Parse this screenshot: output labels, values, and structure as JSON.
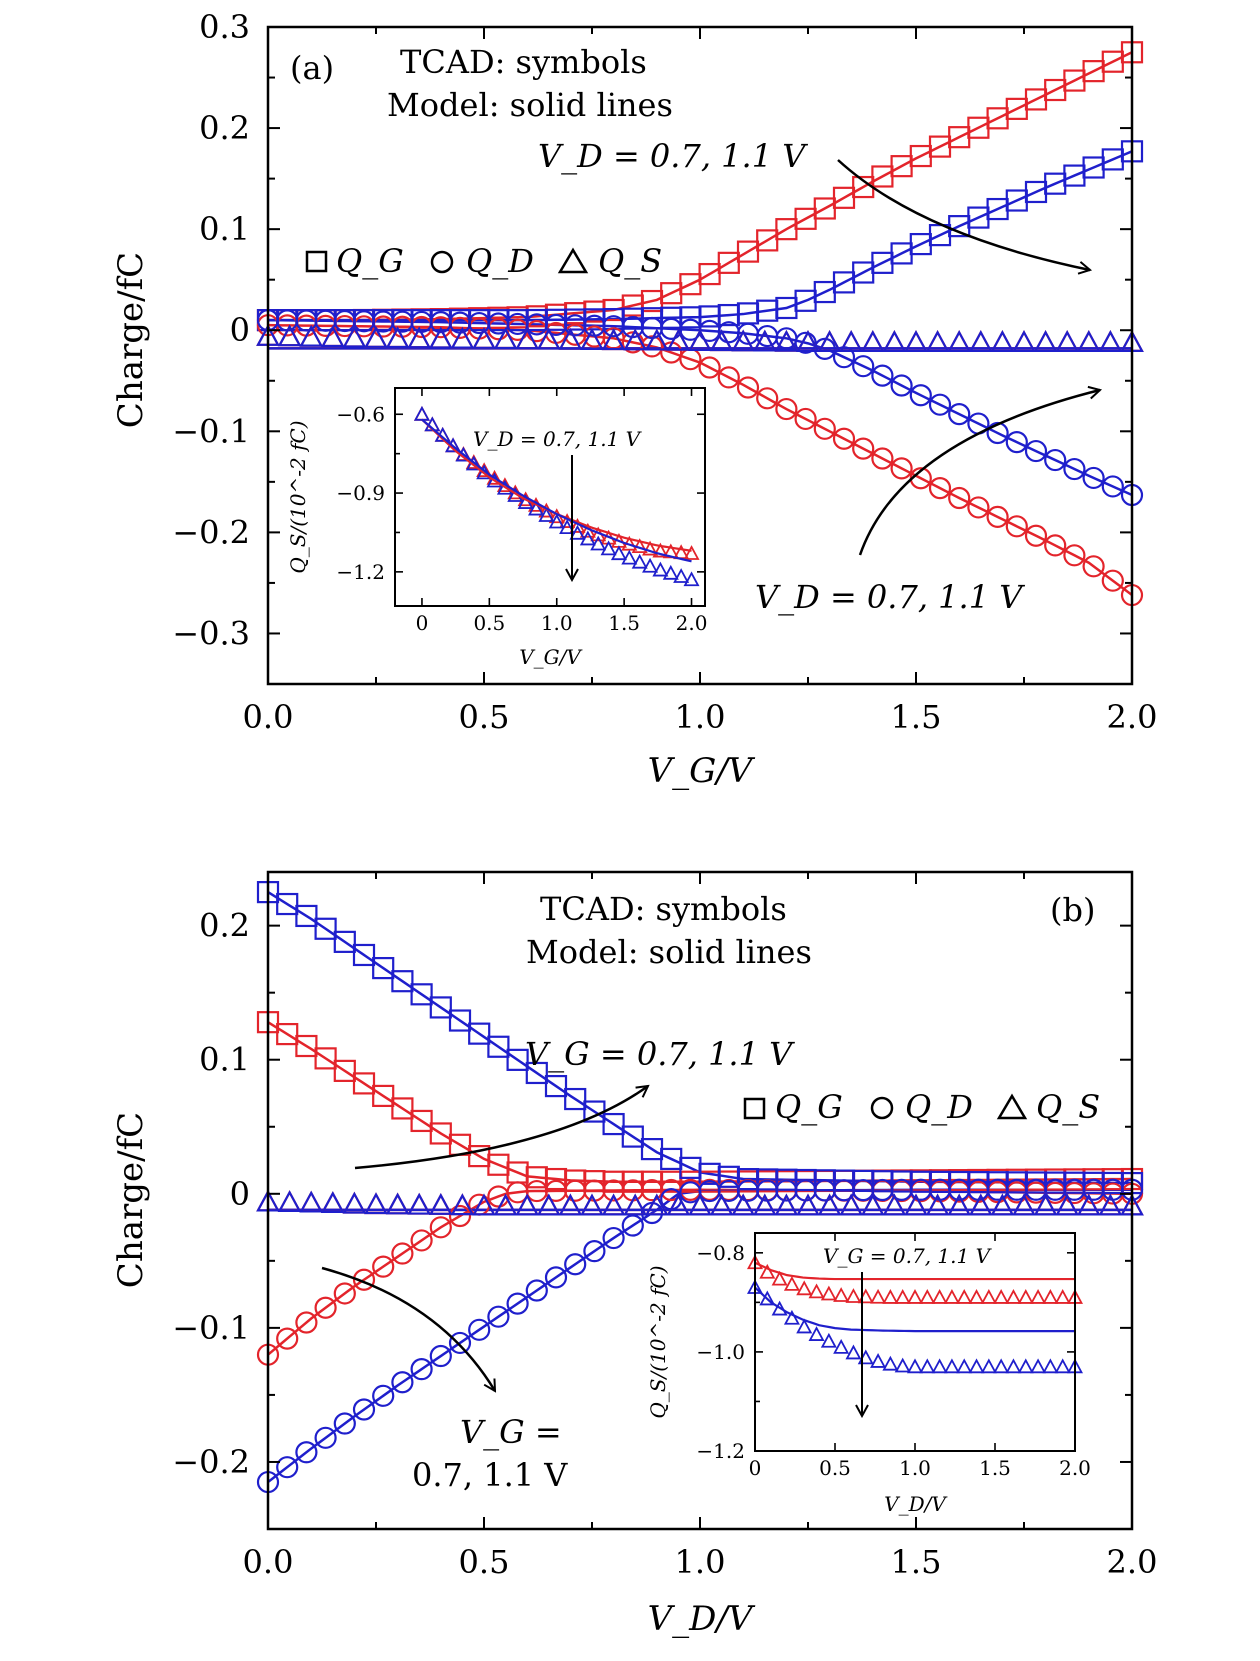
{
  "colors": {
    "vd_low": "#e3242b",
    "vd_high": "#1f1fcc",
    "axis": "#000000",
    "arrow": "#000000"
  },
  "chart_data": [
    {
      "id": "a",
      "type": "line",
      "panel_label": "(a)",
      "note_line1": "TCAD: symbols",
      "note_line2": "Model: solid lines",
      "xlabel": "V_G/V",
      "ylabel": "Charge/fC",
      "xlim": [
        0,
        2.0
      ],
      "ylim": [
        -0.35,
        0.3
      ],
      "xticks": [
        "0.0",
        "0.5",
        "1.0",
        "1.5",
        "2.0"
      ],
      "yticks": [
        "0.3",
        "0.2",
        "0.1",
        "0",
        "−0.1",
        "−0.2",
        "−0.3"
      ],
      "legend": {
        "qg": "Q_G",
        "qd": "Q_D",
        "qs": "Q_S"
      },
      "annotation_upper": "V_D = 0.7, 1.1 V",
      "annotation_lower": "V_D = 0.7, 1.1 V",
      "series": [
        {
          "name": "Q_G, V_D = 0.7 V",
          "color": "vd_low",
          "marker": "square",
          "x": [
            0,
            0.2,
            0.4,
            0.6,
            0.8,
            0.9,
            1.0,
            1.1,
            1.2,
            1.3,
            1.4,
            1.5,
            1.6,
            1.7,
            1.8,
            1.9,
            2.0
          ],
          "y": [
            0.01,
            0.01,
            0.011,
            0.013,
            0.02,
            0.03,
            0.05,
            0.075,
            0.1,
            0.123,
            0.147,
            0.17,
            0.191,
            0.212,
            0.233,
            0.254,
            0.275
          ]
        },
        {
          "name": "Q_G, V_D = 1.1 V",
          "color": "vd_high",
          "marker": "square",
          "x": [
            0,
            0.2,
            0.4,
            0.6,
            0.8,
            1.0,
            1.1,
            1.2,
            1.25,
            1.3,
            1.4,
            1.5,
            1.6,
            1.7,
            1.8,
            1.9,
            2.0
          ],
          "y": [
            0.01,
            0.01,
            0.01,
            0.01,
            0.011,
            0.013,
            0.016,
            0.022,
            0.03,
            0.04,
            0.062,
            0.083,
            0.103,
            0.122,
            0.141,
            0.159,
            0.177
          ]
        },
        {
          "name": "Q_D, V_D = 0.7 V",
          "color": "vd_low",
          "marker": "circle",
          "x": [
            0,
            0.2,
            0.4,
            0.6,
            0.8,
            0.9,
            1.0,
            1.1,
            1.2,
            1.3,
            1.4,
            1.5,
            1.6,
            1.7,
            1.8,
            1.9,
            2.0
          ],
          "y": [
            0.005,
            0.004,
            0.003,
            0.0,
            -0.008,
            -0.017,
            -0.032,
            -0.054,
            -0.078,
            -0.1,
            -0.122,
            -0.144,
            -0.166,
            -0.187,
            -0.208,
            -0.23,
            -0.262
          ]
        },
        {
          "name": "Q_D, V_D = 1.1 V",
          "color": "vd_high",
          "marker": "circle",
          "x": [
            0,
            0.2,
            0.4,
            0.6,
            0.8,
            1.0,
            1.1,
            1.2,
            1.25,
            1.3,
            1.4,
            1.5,
            1.6,
            1.7,
            1.8,
            1.9,
            2.0
          ],
          "y": [
            0.01,
            0.009,
            0.008,
            0.006,
            0.004,
            0.0,
            -0.003,
            -0.008,
            -0.013,
            -0.02,
            -0.04,
            -0.062,
            -0.083,
            -0.104,
            -0.124,
            -0.144,
            -0.163
          ]
        },
        {
          "name": "Q_S, V_D = 0.7 V",
          "color": "vd_low",
          "marker": "triangle",
          "x": [
            0,
            0.25,
            0.5,
            0.75,
            1.0,
            1.25,
            1.5,
            1.75,
            2.0
          ],
          "y": [
            -0.006,
            -0.008,
            -0.009,
            -0.01,
            -0.011,
            -0.012,
            -0.012,
            -0.012,
            -0.012
          ]
        },
        {
          "name": "Q_S, V_D = 1.1 V",
          "color": "vd_high",
          "marker": "triangle",
          "x": [
            0,
            0.25,
            0.5,
            0.75,
            1.0,
            1.25,
            1.5,
            1.75,
            2.0
          ],
          "y": [
            -0.006,
            -0.008,
            -0.009,
            -0.01,
            -0.011,
            -0.012,
            -0.012,
            -0.012,
            -0.012
          ]
        }
      ],
      "model_qs_level": -0.018,
      "inset": {
        "xlabel": "V_G/V",
        "ylabel": "Q_S/(10^-2 fC)",
        "xlim": [
          -0.2,
          2.1
        ],
        "ylim": [
          -1.33,
          -0.5
        ],
        "xticks": [
          "0",
          "0.5",
          "1.0",
          "1.5",
          "2.0"
        ],
        "yticks": [
          "−0.6",
          "−0.9",
          "−1.2"
        ],
        "annotation": "V_D = 0.7, 1.1 V",
        "series": [
          {
            "name": "TCAD, V_D = 0.7 V",
            "color": "vd_low",
            "kind": "markers",
            "x": [
              0,
              0.25,
              0.5,
              0.75,
              1.0,
              1.25,
              1.5,
              1.75,
              2.0
            ],
            "y": [
              -0.6,
              -0.73,
              -0.83,
              -0.92,
              -0.99,
              -1.05,
              -1.09,
              -1.12,
              -1.13
            ]
          },
          {
            "name": "TCAD, V_D = 1.1 V",
            "color": "vd_high",
            "kind": "markers",
            "x": [
              0,
              0.25,
              0.5,
              0.75,
              1.0,
              1.25,
              1.5,
              1.75,
              2.0
            ],
            "y": [
              -0.6,
              -0.73,
              -0.84,
              -0.93,
              -1.01,
              -1.08,
              -1.14,
              -1.19,
              -1.23
            ]
          },
          {
            "name": "Model, V_D = 0.7 V",
            "color": "vd_low",
            "kind": "line",
            "x": [
              0,
              0.25,
              0.5,
              0.75,
              1.0,
              1.25,
              1.5,
              1.75,
              2.0
            ],
            "y": [
              -0.62,
              -0.74,
              -0.84,
              -0.92,
              -0.98,
              -1.03,
              -1.07,
              -1.1,
              -1.12
            ]
          },
          {
            "name": "Model, V_D = 1.1 V",
            "color": "vd_high",
            "kind": "line",
            "x": [
              0,
              0.25,
              0.5,
              0.75,
              1.0,
              1.25,
              1.5,
              1.75,
              2.0
            ],
            "y": [
              -0.62,
              -0.73,
              -0.83,
              -0.91,
              -0.98,
              -1.04,
              -1.09,
              -1.13,
              -1.16
            ]
          }
        ]
      }
    },
    {
      "id": "b",
      "type": "line",
      "panel_label": "(b)",
      "note_line1": "TCAD: symbols",
      "note_line2": "Model: solid lines",
      "xlabel": "V_D/V",
      "ylabel": "Charge/fC",
      "xlim": [
        0,
        2.0
      ],
      "ylim": [
        -0.25,
        0.24
      ],
      "xticks": [
        "0.0",
        "0.5",
        "1.0",
        "1.5",
        "2.0"
      ],
      "yticks": [
        "0.2",
        "0.1",
        "0",
        "−0.1",
        "−0.2"
      ],
      "legend": {
        "qg": "Q_G",
        "qd": "Q_D",
        "qs": "Q_S"
      },
      "annotation_upper": "V_G = 0.7, 1.1 V",
      "annotation_lower_1": "V_G =",
      "annotation_lower_2": "0.7, 1.1 V",
      "series": [
        {
          "name": "Q_G, V_G = 0.7 V",
          "color": "vd_low",
          "marker": "square",
          "x": [
            0,
            0.1,
            0.2,
            0.3,
            0.4,
            0.5,
            0.6,
            0.7,
            0.8,
            1.0,
            1.5,
            2.0
          ],
          "y": [
            0.128,
            0.108,
            0.087,
            0.066,
            0.045,
            0.026,
            0.013,
            0.01,
            0.009,
            0.009,
            0.01,
            0.011
          ]
        },
        {
          "name": "Q_G, V_G = 1.1 V",
          "color": "vd_high",
          "marker": "square",
          "x": [
            0,
            0.1,
            0.2,
            0.3,
            0.4,
            0.5,
            0.6,
            0.7,
            0.8,
            0.9,
            1.0,
            1.1,
            1.5,
            2.0
          ],
          "y": [
            0.225,
            0.205,
            0.183,
            0.161,
            0.139,
            0.117,
            0.095,
            0.073,
            0.052,
            0.031,
            0.016,
            0.011,
            0.009,
            0.008
          ]
        },
        {
          "name": "Q_D, V_G = 0.7 V",
          "color": "vd_low",
          "marker": "circle",
          "x": [
            0,
            0.1,
            0.2,
            0.3,
            0.4,
            0.5,
            0.55,
            0.6,
            1.0,
            1.5,
            2.0
          ],
          "y": [
            -0.12,
            -0.093,
            -0.069,
            -0.047,
            -0.025,
            -0.006,
            0.0,
            0.002,
            0.003,
            0.002,
            0.0
          ]
        },
        {
          "name": "Q_D, V_G = 1.1 V",
          "color": "vd_high",
          "marker": "circle",
          "x": [
            0,
            0.1,
            0.2,
            0.3,
            0.4,
            0.5,
            0.6,
            0.7,
            0.8,
            0.9,
            0.95,
            1.0,
            1.5,
            2.0
          ],
          "y": [
            -0.215,
            -0.19,
            -0.166,
            -0.143,
            -0.121,
            -0.099,
            -0.077,
            -0.055,
            -0.033,
            -0.012,
            0.0,
            0.002,
            0.003,
            0.003
          ]
        },
        {
          "name": "Q_S, V_G = 0.7 V",
          "color": "vd_low",
          "marker": "triangle",
          "x": [
            0,
            0.25,
            0.5,
            0.75,
            1.0,
            1.25,
            1.5,
            1.75,
            2.0
          ],
          "y": [
            -0.006,
            -0.008,
            -0.009,
            -0.009,
            -0.009,
            -0.009,
            -0.009,
            -0.009,
            -0.009
          ]
        },
        {
          "name": "Q_S, V_G = 1.1 V",
          "color": "vd_high",
          "marker": "triangle",
          "x": [
            0,
            0.25,
            0.5,
            0.75,
            1.0,
            1.25,
            1.5,
            1.75,
            2.0
          ],
          "y": [
            -0.006,
            -0.008,
            -0.009,
            -0.009,
            -0.009,
            -0.009,
            -0.009,
            -0.009,
            -0.009
          ]
        }
      ],
      "model_qs_level": -0.012,
      "inset": {
        "xlabel": "V_D/V",
        "ylabel": "Q_S/(10^-2 fC)",
        "xlim": [
          0,
          2.0
        ],
        "ylim": [
          -1.2,
          -0.76
        ],
        "xticks": [
          "0",
          "0.5",
          "1.0",
          "1.5",
          "2.0"
        ],
        "yticks": [
          "−0.8",
          "−1.0",
          "−1.2"
        ],
        "annotation": "V_G = 0.7, 1.1 V",
        "series": [
          {
            "name": "TCAD, V_G = 0.7 V",
            "color": "vd_low",
            "kind": "markers",
            "x": [
              0,
              0.1,
              0.2,
              0.3,
              0.4,
              0.5,
              0.6,
              0.7,
              0.8,
              1.0,
              1.5,
              2.0
            ],
            "y": [
              -0.82,
              -0.845,
              -0.86,
              -0.872,
              -0.88,
              -0.885,
              -0.888,
              -0.889,
              -0.89,
              -0.89,
              -0.89,
              -0.89
            ]
          },
          {
            "name": "TCAD, V_G = 1.1 V",
            "color": "vd_high",
            "kind": "markers",
            "x": [
              0,
              0.1,
              0.2,
              0.3,
              0.4,
              0.5,
              0.6,
              0.7,
              0.8,
              0.9,
              1.0,
              1.5,
              2.0
            ],
            "y": [
              -0.87,
              -0.9,
              -0.925,
              -0.948,
              -0.968,
              -0.985,
              -1.0,
              -1.013,
              -1.022,
              -1.028,
              -1.03,
              -1.03,
              -1.03
            ]
          },
          {
            "name": "Model, V_G = 0.7 V",
            "color": "vd_low",
            "kind": "line",
            "x": [
              0,
              0.1,
              0.2,
              0.3,
              0.4,
              0.5,
              0.7,
              1.0,
              2.0
            ],
            "y": [
              -0.82,
              -0.835,
              -0.845,
              -0.85,
              -0.852,
              -0.853,
              -0.853,
              -0.853,
              -0.853
            ]
          },
          {
            "name": "Model, V_G = 1.1 V",
            "color": "vd_high",
            "kind": "line",
            "x": [
              0,
              0.1,
              0.2,
              0.3,
              0.4,
              0.5,
              0.6,
              0.8,
              1.0,
              2.0
            ],
            "y": [
              -0.87,
              -0.9,
              -0.92,
              -0.935,
              -0.946,
              -0.952,
              -0.955,
              -0.957,
              -0.958,
              -0.958
            ]
          }
        ]
      }
    }
  ]
}
